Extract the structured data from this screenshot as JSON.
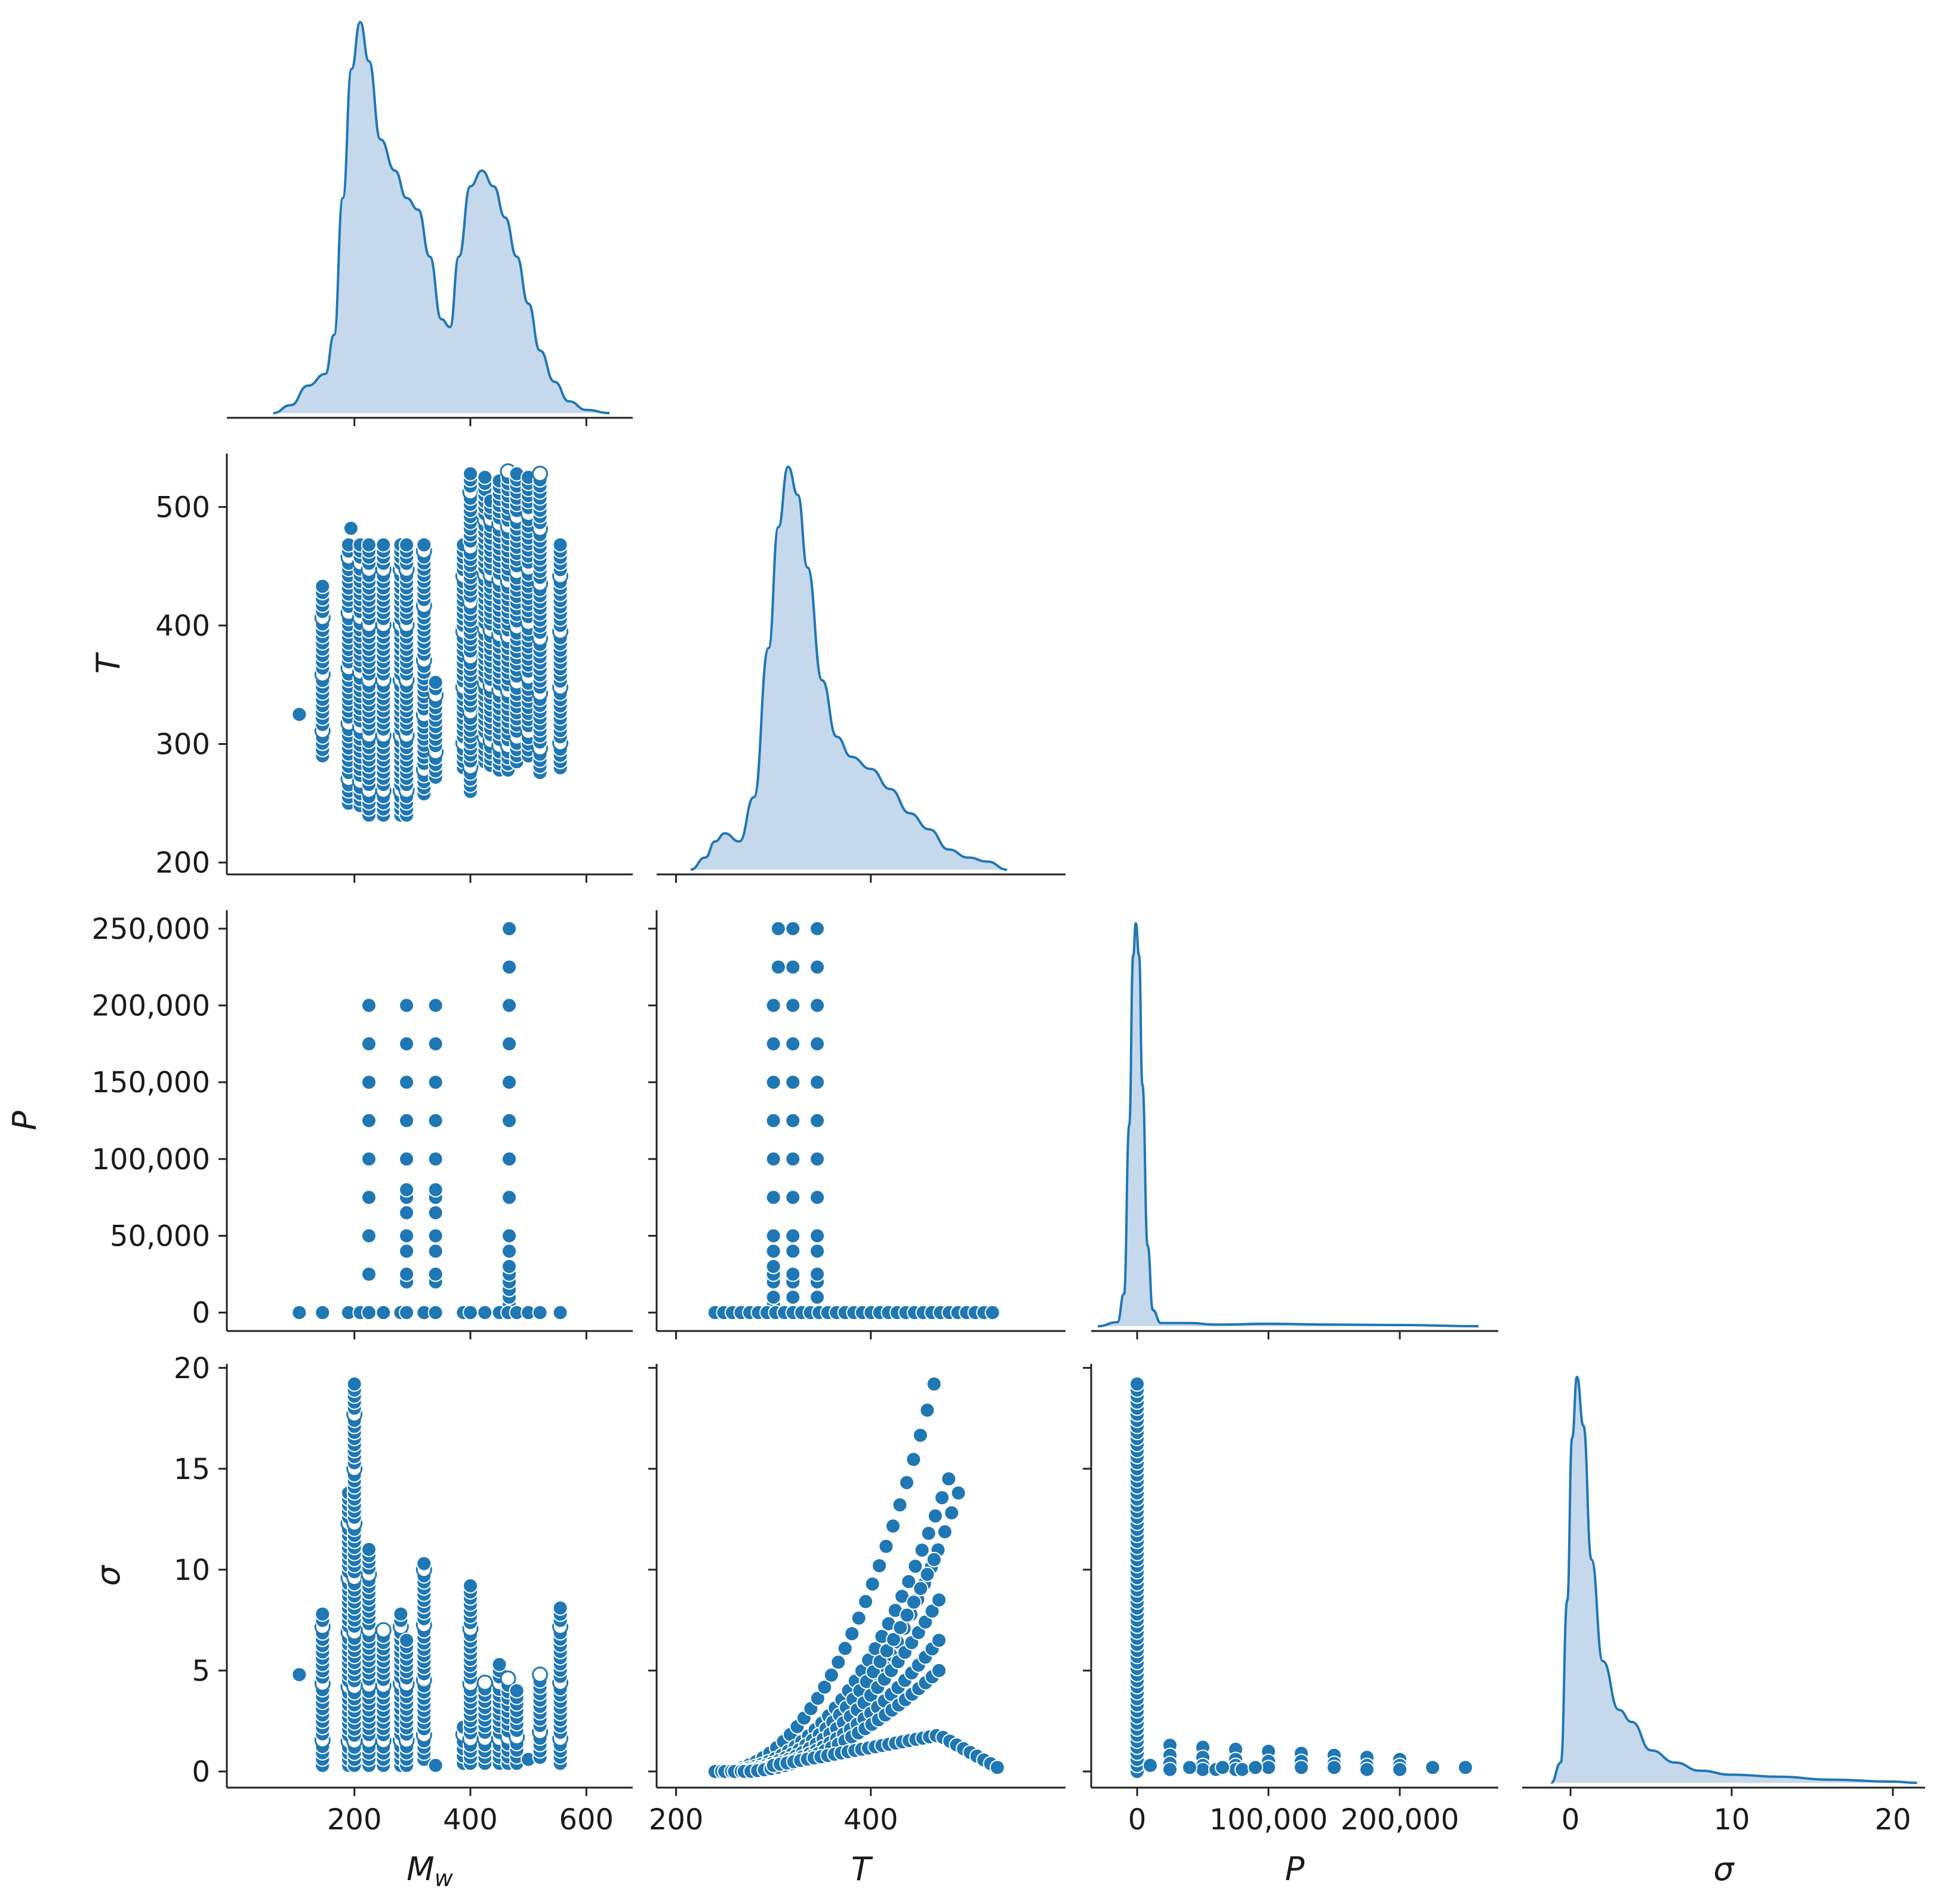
{
  "figure": {
    "type": "pairplot",
    "variables": [
      "M_w",
      "T",
      "P",
      "σ"
    ],
    "accent_color": "#1f77b4",
    "kde_fill": "#c6d9ec"
  },
  "chart_data": [
    {
      "type": "area",
      "name": "kde-mw",
      "var": "M_w",
      "xlim": [
        -20,
        680
      ],
      "ylim": [
        0,
        1
      ],
      "x_ticks": [
        200,
        400,
        600
      ],
      "kde": [
        [
          60,
          0
        ],
        [
          90,
          0.02
        ],
        [
          120,
          0.07
        ],
        [
          150,
          0.1
        ],
        [
          165,
          0.2
        ],
        [
          180,
          0.55
        ],
        [
          195,
          0.88
        ],
        [
          210,
          1.0
        ],
        [
          225,
          0.9
        ],
        [
          245,
          0.7
        ],
        [
          270,
          0.62
        ],
        [
          290,
          0.55
        ],
        [
          310,
          0.52
        ],
        [
          330,
          0.4
        ],
        [
          350,
          0.24
        ],
        [
          365,
          0.22
        ],
        [
          380,
          0.4
        ],
        [
          400,
          0.58
        ],
        [
          420,
          0.62
        ],
        [
          440,
          0.58
        ],
        [
          460,
          0.5
        ],
        [
          480,
          0.4
        ],
        [
          500,
          0.28
        ],
        [
          520,
          0.16
        ],
        [
          545,
          0.08
        ],
        [
          570,
          0.03
        ],
        [
          600,
          0.008
        ],
        [
          640,
          0
        ]
      ]
    },
    {
      "type": "scatter",
      "name": "scatter-t-vs-mw",
      "x": "M_w",
      "y": "T",
      "xlim": [
        -20,
        680
      ],
      "ylim": [
        190,
        545
      ],
      "y_ticks": [
        200,
        300,
        400,
        500
      ],
      "ylabel": "T",
      "columns": [
        {
          "x": 105,
          "y": [
            325
          ]
        },
        {
          "x": 145,
          "y_range": [
            290,
            433
          ]
        },
        {
          "x": 190,
          "y_range": [
            250,
            468
          ]
        },
        {
          "x": 194,
          "y": [
            482
          ]
        },
        {
          "x": 210,
          "y_range": [
            248,
            468
          ]
        },
        {
          "x": 225,
          "y_range": [
            240,
            468
          ]
        },
        {
          "x": 250,
          "y_range": [
            240,
            468
          ]
        },
        {
          "x": 280,
          "y_range": [
            240,
            468
          ]
        },
        {
          "x": 290,
          "y_range": [
            240,
            468
          ]
        },
        {
          "x": 320,
          "y_range": [
            258,
            468
          ]
        },
        {
          "x": 340,
          "y_range": [
            272,
            352
          ]
        },
        {
          "x": 388,
          "y_range": [
            280,
            468
          ]
        },
        {
          "x": 400,
          "y_range": [
            260,
            528
          ]
        },
        {
          "x": 425,
          "y_range": [
            285,
            525
          ]
        },
        {
          "x": 435,
          "y_range": [
            282,
            505
          ]
        },
        {
          "x": 450,
          "y_range": [
            278,
            522
          ]
        },
        {
          "x": 465,
          "y_range": [
            278,
            530
          ]
        },
        {
          "x": 480,
          "y_range": [
            285,
            528
          ]
        },
        {
          "x": 500,
          "y_range": [
            290,
            525
          ]
        },
        {
          "x": 520,
          "y_range": [
            276,
            528
          ]
        },
        {
          "x": 555,
          "y_range": [
            280,
            468
          ]
        }
      ]
    },
    {
      "type": "area",
      "name": "kde-t",
      "var": "T",
      "xlim": [
        180,
        600
      ],
      "ylim": [
        0,
        1
      ],
      "kde": [
        [
          215,
          0
        ],
        [
          230,
          0.03
        ],
        [
          240,
          0.07
        ],
        [
          250,
          0.09
        ],
        [
          265,
          0.07
        ],
        [
          280,
          0.18
        ],
        [
          295,
          0.55
        ],
        [
          305,
          0.85
        ],
        [
          315,
          1.0
        ],
        [
          325,
          0.93
        ],
        [
          335,
          0.75
        ],
        [
          350,
          0.47
        ],
        [
          365,
          0.33
        ],
        [
          380,
          0.28
        ],
        [
          400,
          0.25
        ],
        [
          420,
          0.2
        ],
        [
          440,
          0.14
        ],
        [
          460,
          0.1
        ],
        [
          480,
          0.05
        ],
        [
          500,
          0.03
        ],
        [
          520,
          0.02
        ],
        [
          540,
          0
        ]
      ]
    },
    {
      "type": "scatter",
      "name": "scatter-p-vs-mw",
      "x": "M_w",
      "y": "P",
      "xlim": [
        -20,
        680
      ],
      "ylim": [
        -12000,
        262000
      ],
      "y_ticks": [
        0,
        50000,
        100000,
        150000,
        200000,
        250000
      ],
      "y_tick_labels": [
        "0",
        "50,000",
        "100,000",
        "150,000",
        "200,000",
        "250,000"
      ],
      "ylabel": "P",
      "baseline_x": [
        105,
        145,
        190,
        210,
        225,
        250,
        280,
        290,
        320,
        340,
        388,
        400,
        425,
        450,
        465,
        480,
        500,
        520,
        555
      ],
      "columns": [
        {
          "x": 225,
          "y": [
            0,
            25000,
            50000,
            75000,
            100000,
            125000,
            150000,
            175000,
            200000
          ]
        },
        {
          "x": 290,
          "y": [
            0,
            20000,
            25000,
            40000,
            50000,
            65000,
            75000,
            80000,
            100000,
            125000,
            150000,
            175000,
            200000
          ]
        },
        {
          "x": 340,
          "y": [
            0,
            20000,
            25000,
            40000,
            50000,
            65000,
            75000,
            80000,
            100000,
            125000,
            150000,
            175000,
            200000
          ]
        },
        {
          "x": 467,
          "y": [
            0,
            5000,
            10000,
            15000,
            20000,
            25000,
            30000,
            40000,
            50000,
            75000,
            100000,
            125000,
            150000,
            175000,
            200000,
            225000,
            250000
          ]
        }
      ]
    },
    {
      "type": "scatter",
      "name": "scatter-p-vs-t",
      "x": "T",
      "y": "P",
      "xlim": [
        180,
        600
      ],
      "ylim": [
        -12000,
        262000
      ],
      "baseline_x_range": [
        240,
        525
      ],
      "columns": [
        {
          "x": 300,
          "y": [
            0,
            5000,
            10000,
            20000,
            25000,
            30000,
            40000,
            50000,
            75000,
            100000,
            125000,
            150000,
            175000,
            200000
          ]
        },
        {
          "x": 305,
          "y": [
            225000,
            250000
          ]
        },
        {
          "x": 320,
          "y": [
            0,
            10000,
            20000,
            25000,
            40000,
            50000,
            75000,
            100000,
            125000,
            150000,
            175000,
            200000,
            225000,
            250000
          ]
        },
        {
          "x": 345,
          "y": [
            0,
            10000,
            20000,
            25000,
            40000,
            50000,
            75000,
            100000,
            125000,
            150000,
            175000,
            200000,
            225000,
            250000
          ]
        }
      ]
    },
    {
      "type": "area",
      "name": "kde-p",
      "var": "P",
      "xlim": [
        -35000,
        275000
      ],
      "ylim": [
        0,
        1
      ],
      "kde": [
        [
          -30000,
          0
        ],
        [
          -15000,
          0.01
        ],
        [
          -10000,
          0.08
        ],
        [
          -6000,
          0.5
        ],
        [
          -3000,
          0.92
        ],
        [
          -1000,
          1.0
        ],
        [
          1500,
          0.92
        ],
        [
          4000,
          0.6
        ],
        [
          8000,
          0.2
        ],
        [
          12000,
          0.04
        ],
        [
          18000,
          0.008
        ],
        [
          40000,
          0.008
        ],
        [
          60000,
          0.004
        ],
        [
          100000,
          0.006
        ],
        [
          150000,
          0.004
        ],
        [
          200000,
          0.003
        ],
        [
          260000,
          0
        ]
      ]
    },
    {
      "type": "scatter",
      "name": "scatter-sigma-vs-mw",
      "x": "M_w",
      "y": "σ",
      "xlim": [
        -20,
        680
      ],
      "ylim": [
        -0.8,
        20.2
      ],
      "x_ticks": [
        200,
        400,
        600
      ],
      "y_ticks": [
        0,
        5,
        10,
        15,
        20
      ],
      "xlabel": "M_w",
      "ylabel": "σ",
      "columns": [
        {
          "x": 105,
          "y": [
            4.8
          ]
        },
        {
          "x": 145,
          "y_range": [
            0.3,
            7.8
          ]
        },
        {
          "x": 190,
          "y_range": [
            0.3,
            13.8
          ]
        },
        {
          "x": 200,
          "y_range": [
            0.3,
            19.2
          ]
        },
        {
          "x": 225,
          "y_range": [
            0.3,
            11.0
          ]
        },
        {
          "x": 250,
          "y_range": [
            0.3,
            7.0
          ]
        },
        {
          "x": 280,
          "y_range": [
            0.3,
            7.8
          ]
        },
        {
          "x": 290,
          "y_range": [
            0.3,
            6.5
          ]
        },
        {
          "x": 320,
          "y_range": [
            0.6,
            10.3
          ]
        },
        {
          "x": 340,
          "y": [
            0.3
          ]
        },
        {
          "x": 388,
          "y_range": [
            0.4,
            2.2
          ]
        },
        {
          "x": 400,
          "y_range": [
            0.4,
            9.2
          ]
        },
        {
          "x": 425,
          "y_range": [
            0.4,
            4.4
          ]
        },
        {
          "x": 450,
          "y_range": [
            0.4,
            5.3
          ]
        },
        {
          "x": 465,
          "y_range": [
            0.4,
            4.6
          ]
        },
        {
          "x": 480,
          "y_range": [
            0.4,
            4.0
          ]
        },
        {
          "x": 500,
          "y": [
            0.6
          ]
        },
        {
          "x": 520,
          "y_range": [
            0.7,
            4.8
          ]
        },
        {
          "x": 555,
          "y_range": [
            0.4,
            8.1
          ]
        }
      ]
    },
    {
      "type": "scatter",
      "name": "scatter-sigma-vs-t",
      "x": "T",
      "y": "σ",
      "xlim": [
        180,
        600
      ],
      "ylim": [
        -0.8,
        20.2
      ],
      "x_ticks": [
        200,
        400
      ],
      "xlabel": "T",
      "curves": [
        {
          "T_range": [
            240,
            465
          ],
          "sigma_range": [
            0,
            19.2
          ],
          "exponent": 2.2
        },
        {
          "T_range": [
            240,
            480
          ],
          "sigma_range": [
            0,
            14.5
          ],
          "exponent": 2.3
        },
        {
          "T_range": [
            260,
            490
          ],
          "sigma_range": [
            0,
            13.8
          ],
          "exponent": 2.4
        },
        {
          "T_range": [
            250,
            465
          ],
          "sigma_range": [
            0,
            10.5
          ],
          "exponent": 2.2
        },
        {
          "T_range": [
            260,
            470
          ],
          "sigma_range": [
            0,
            8.5
          ],
          "exponent": 2.0
        },
        {
          "T_range": [
            260,
            470
          ],
          "sigma_range": [
            0,
            6.5
          ],
          "exponent": 2.0
        },
        {
          "T_range": [
            270,
            470
          ],
          "sigma_range": [
            0,
            5.0
          ],
          "exponent": 1.8
        },
        {
          "T_range": [
            300,
            530
          ],
          "sigma_range": [
            0.3,
            1.8
          ],
          "peak_T": 470,
          "drop_to": 0.2
        }
      ]
    },
    {
      "type": "scatter",
      "name": "scatter-sigma-vs-p",
      "x": "P",
      "y": "σ",
      "xlim": [
        -35000,
        275000
      ],
      "ylim": [
        -0.8,
        20.2
      ],
      "x_ticks": [
        0,
        100000,
        200000
      ],
      "x_tick_labels": [
        "0",
        "100,000",
        "200,000"
      ],
      "xlabel": "P",
      "zero_column_sigma_range": [
        0,
        19.2
      ],
      "points": [
        [
          25000,
          1.3
        ],
        [
          25000,
          0.8
        ],
        [
          25000,
          0.4
        ],
        [
          25000,
          0.1
        ],
        [
          50000,
          1.2
        ],
        [
          50000,
          0.7
        ],
        [
          50000,
          0.3
        ],
        [
          50000,
          0.1
        ],
        [
          75000,
          1.1
        ],
        [
          75000,
          0.6
        ],
        [
          75000,
          0.3
        ],
        [
          75000,
          0.1
        ],
        [
          100000,
          1.0
        ],
        [
          100000,
          0.5
        ],
        [
          100000,
          0.2
        ],
        [
          125000,
          0.9
        ],
        [
          125000,
          0.5
        ],
        [
          125000,
          0.2
        ],
        [
          150000,
          0.8
        ],
        [
          150000,
          0.4
        ],
        [
          150000,
          0.2
        ],
        [
          175000,
          0.7
        ],
        [
          175000,
          0.3
        ],
        [
          175000,
          0.1
        ],
        [
          200000,
          0.6
        ],
        [
          200000,
          0.3
        ],
        [
          200000,
          0.1
        ],
        [
          225000,
          0.2
        ],
        [
          250000,
          0.2
        ],
        [
          10000,
          0.3
        ],
        [
          40000,
          0.2
        ],
        [
          60000,
          0.1
        ],
        [
          65000,
          0.2
        ],
        [
          80000,
          0.1
        ],
        [
          90000,
          0.2
        ]
      ]
    },
    {
      "type": "area",
      "name": "kde-sigma",
      "var": "σ",
      "xlim": [
        -3,
        22
      ],
      "ylim": [
        0,
        1
      ],
      "x_ticks": [
        0,
        10,
        20
      ],
      "xlabel": "σ",
      "kde": [
        [
          -1.2,
          0
        ],
        [
          -0.6,
          0.05
        ],
        [
          -0.2,
          0.45
        ],
        [
          0.1,
          0.85
        ],
        [
          0.4,
          1.0
        ],
        [
          0.8,
          0.88
        ],
        [
          1.3,
          0.55
        ],
        [
          2.0,
          0.3
        ],
        [
          3.0,
          0.18
        ],
        [
          3.8,
          0.15
        ],
        [
          5.0,
          0.08
        ],
        [
          6.5,
          0.05
        ],
        [
          8.0,
          0.03
        ],
        [
          10.0,
          0.02
        ],
        [
          13.0,
          0.015
        ],
        [
          16.0,
          0.008
        ],
        [
          20.0,
          0.003
        ],
        [
          21.5,
          0
        ]
      ]
    }
  ]
}
